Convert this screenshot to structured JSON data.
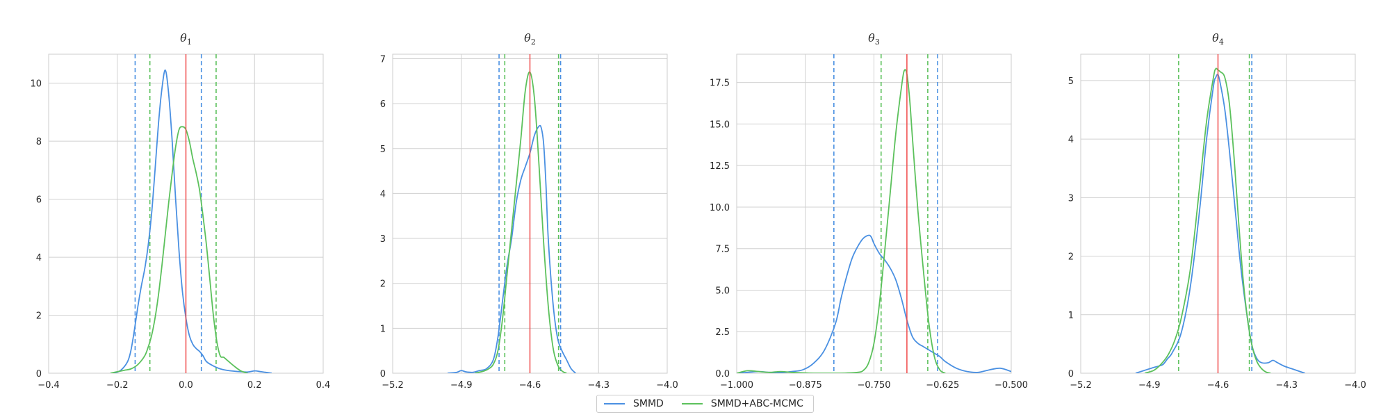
{
  "colors": {
    "smmd": "#4a90e2",
    "abc": "#5cc15c",
    "truth": "#f04a4a",
    "grid": "#d0d0d0",
    "axis_text": "#262626"
  },
  "legend": {
    "placement": "bottom-center",
    "items": [
      {
        "label": "SMMD",
        "color": "#4a90e2"
      },
      {
        "label": "SMMD+ABC-MCMC",
        "color": "#5cc15c"
      }
    ]
  },
  "chart_data": [
    {
      "type": "line",
      "title_base": "θ",
      "title_sub": "1",
      "xlim": [
        -0.4,
        0.4
      ],
      "ylim": [
        0,
        11
      ],
      "xticks": [
        -0.4,
        -0.2,
        0.0,
        0.2,
        0.4
      ],
      "xtick_labels": [
        "−0.4",
        "−0.2",
        "0.0",
        "0.2",
        "0.4"
      ],
      "yticks": [
        0,
        2,
        4,
        6,
        8,
        10
      ],
      "ytick_labels": [
        "0",
        "2",
        "4",
        "6",
        "8",
        "10"
      ],
      "grid": true,
      "true_value": 0.0,
      "series": [
        {
          "name": "SMMD",
          "color": "#4a90e2",
          "x": [
            -0.21,
            -0.19,
            -0.17,
            -0.16,
            -0.15,
            -0.14,
            -0.13,
            -0.12,
            -0.11,
            -0.1,
            -0.09,
            -0.08,
            -0.07,
            -0.06,
            -0.05,
            -0.04,
            -0.03,
            -0.02,
            -0.01,
            0.0,
            0.01,
            0.02,
            0.03,
            0.04,
            0.05,
            0.06,
            0.08,
            0.1,
            0.12,
            0.15,
            0.18,
            0.2,
            0.22,
            0.25
          ],
          "y": [
            0.0,
            0.1,
            0.4,
            0.8,
            1.5,
            2.3,
            3.0,
            3.6,
            4.4,
            5.5,
            7.0,
            8.6,
            9.8,
            10.45,
            9.6,
            8.0,
            6.0,
            4.2,
            2.8,
            1.9,
            1.3,
            1.0,
            0.85,
            0.75,
            0.6,
            0.4,
            0.25,
            0.15,
            0.1,
            0.06,
            0.04,
            0.08,
            0.05,
            0.0
          ]
        },
        {
          "name": "SMMD+ABC-MCMC",
          "color": "#5cc15c",
          "x": [
            -0.22,
            -0.2,
            -0.18,
            -0.16,
            -0.14,
            -0.12,
            -0.11,
            -0.1,
            -0.09,
            -0.08,
            -0.07,
            -0.06,
            -0.05,
            -0.04,
            -0.03,
            -0.02,
            -0.01,
            0.0,
            0.01,
            0.02,
            0.03,
            0.04,
            0.05,
            0.06,
            0.07,
            0.08,
            0.09,
            0.1,
            0.11,
            0.12,
            0.14,
            0.16,
            0.18
          ],
          "y": [
            0.0,
            0.05,
            0.1,
            0.15,
            0.3,
            0.6,
            0.9,
            1.3,
            1.9,
            2.7,
            3.7,
            4.8,
            5.9,
            6.9,
            7.8,
            8.4,
            8.5,
            8.4,
            8.0,
            7.4,
            6.9,
            6.3,
            5.4,
            4.4,
            3.2,
            2.0,
            1.1,
            0.6,
            0.55,
            0.45,
            0.25,
            0.08,
            0.0
          ]
        }
      ],
      "intervals": [
        {
          "series": "SMMD",
          "color": "#4a90e2",
          "values": [
            -0.148,
            0.045
          ]
        },
        {
          "series": "SMMD+ABC-MCMC",
          "color": "#5cc15c",
          "values": [
            -0.105,
            0.088
          ]
        }
      ]
    },
    {
      "type": "line",
      "title_base": "θ",
      "title_sub": "2",
      "xlim": [
        -5.2,
        -4.0
      ],
      "ylim": [
        0,
        7.1
      ],
      "xticks": [
        -5.2,
        -4.9,
        -4.6,
        -4.3,
        -4.0
      ],
      "xtick_labels": [
        "−5.2",
        "−4.9",
        "−4.6",
        "−4.3",
        "−4.0"
      ],
      "yticks": [
        0,
        1,
        2,
        3,
        4,
        5,
        6,
        7
      ],
      "ytick_labels": [
        "0",
        "1",
        "2",
        "3",
        "4",
        "5",
        "6",
        "7"
      ],
      "grid": true,
      "true_value": -4.6,
      "series": [
        {
          "name": "SMMD",
          "color": "#4a90e2",
          "x": [
            -4.96,
            -4.92,
            -4.9,
            -4.88,
            -4.85,
            -4.82,
            -4.79,
            -4.76,
            -4.74,
            -4.72,
            -4.7,
            -4.68,
            -4.66,
            -4.64,
            -4.62,
            -4.6,
            -4.58,
            -4.56,
            -4.55,
            -4.54,
            -4.53,
            -4.52,
            -4.5,
            -4.48,
            -4.46,
            -4.44,
            -4.42,
            -4.4
          ],
          "y": [
            0.0,
            0.02,
            0.06,
            0.03,
            0.02,
            0.06,
            0.1,
            0.3,
            0.8,
            1.6,
            2.4,
            3.0,
            3.8,
            4.3,
            4.6,
            4.9,
            5.3,
            5.5,
            5.45,
            5.1,
            4.2,
            3.0,
            1.6,
            0.8,
            0.5,
            0.3,
            0.1,
            0.0
          ]
        },
        {
          "name": "SMMD+ABC-MCMC",
          "color": "#5cc15c",
          "x": [
            -4.84,
            -4.8,
            -4.78,
            -4.76,
            -4.74,
            -4.72,
            -4.7,
            -4.68,
            -4.66,
            -4.64,
            -4.62,
            -4.6,
            -4.58,
            -4.56,
            -4.54,
            -4.52,
            -4.5,
            -4.48,
            -4.46,
            -4.44
          ],
          "y": [
            0.0,
            0.05,
            0.1,
            0.2,
            0.5,
            1.2,
            2.2,
            3.2,
            4.2,
            5.2,
            6.3,
            6.7,
            6.1,
            4.6,
            2.9,
            1.5,
            0.6,
            0.2,
            0.05,
            0.0
          ]
        }
      ],
      "intervals": [
        {
          "series": "SMMD",
          "color": "#4a90e2",
          "values": [
            -4.735,
            -4.466
          ]
        },
        {
          "series": "SMMD+ABC-MCMC",
          "color": "#5cc15c",
          "values": [
            -4.71,
            -4.475
          ]
        }
      ]
    },
    {
      "type": "line",
      "title_base": "θ",
      "title_sub": "3",
      "xlim": [
        -1.0,
        -0.5
      ],
      "ylim": [
        0,
        19.2
      ],
      "xticks": [
        -1.0,
        -0.875,
        -0.75,
        -0.625,
        -0.5
      ],
      "xtick_labels": [
        "−1.000",
        "−0.875",
        "−0.750",
        "−0.625",
        "−0.500"
      ],
      "yticks": [
        0,
        2.5,
        5,
        7.5,
        10,
        12.5,
        15,
        17.5
      ],
      "ytick_labels": [
        "0.0",
        "2.5",
        "5.0",
        "7.5",
        "10.0",
        "12.5",
        "15.0",
        "17.5"
      ],
      "grid": true,
      "true_value": -0.69,
      "series": [
        {
          "name": "SMMD",
          "color": "#4a90e2",
          "x": [
            -1.0,
            -0.98,
            -0.96,
            -0.94,
            -0.92,
            -0.9,
            -0.88,
            -0.86,
            -0.84,
            -0.82,
            -0.81,
            -0.8,
            -0.79,
            -0.78,
            -0.77,
            -0.76,
            -0.755,
            -0.75,
            -0.74,
            -0.73,
            -0.72,
            -0.71,
            -0.7,
            -0.69,
            -0.68,
            -0.67,
            -0.66,
            -0.65,
            -0.64,
            -0.63,
            -0.62,
            -0.6,
            -0.58,
            -0.56,
            -0.54,
            -0.52,
            -0.5
          ],
          "y": [
            0.0,
            0.05,
            0.1,
            0.05,
            0.03,
            0.1,
            0.2,
            0.6,
            1.4,
            3.0,
            4.5,
            5.8,
            6.9,
            7.6,
            8.1,
            8.3,
            8.2,
            7.8,
            7.2,
            6.8,
            6.3,
            5.6,
            4.5,
            3.2,
            2.2,
            1.8,
            1.6,
            1.4,
            1.2,
            1.0,
            0.7,
            0.3,
            0.1,
            0.05,
            0.2,
            0.3,
            0.1
          ]
        },
        {
          "name": "SMMD+ABC-MCMC",
          "color": "#5cc15c",
          "x": [
            -1.0,
            -0.98,
            -0.96,
            -0.94,
            -0.92,
            -0.9,
            -0.88,
            -0.86,
            -0.84,
            -0.82,
            -0.8,
            -0.78,
            -0.77,
            -0.76,
            -0.75,
            -0.74,
            -0.73,
            -0.72,
            -0.71,
            -0.7,
            -0.695,
            -0.69,
            -0.685,
            -0.68,
            -0.67,
            -0.66,
            -0.65,
            -0.64,
            -0.63,
            -0.62
          ],
          "y": [
            0.0,
            0.15,
            0.1,
            0.05,
            0.1,
            0.05,
            0.02,
            0.0,
            0.0,
            0.0,
            0.01,
            0.05,
            0.15,
            0.6,
            1.8,
            4.2,
            7.5,
            11.0,
            14.5,
            17.2,
            18.2,
            18.0,
            16.5,
            14.2,
            9.8,
            6.2,
            3.0,
            1.0,
            0.2,
            0.0
          ]
        }
      ],
      "intervals": [
        {
          "series": "SMMD",
          "color": "#4a90e2",
          "values": [
            -0.823,
            -0.634
          ]
        },
        {
          "series": "SMMD+ABC-MCMC",
          "color": "#5cc15c",
          "values": [
            -0.737,
            -0.652
          ]
        }
      ]
    },
    {
      "type": "line",
      "title_base": "θ",
      "title_sub": "4",
      "xlim": [
        -5.2,
        -4.0
      ],
      "ylim": [
        0,
        5.45
      ],
      "xticks": [
        -5.2,
        -4.9,
        -4.6,
        -4.3,
        -4.0
      ],
      "xtick_labels": [
        "−5.2",
        "−4.9",
        "−4.6",
        "−4.3",
        "−4.0"
      ],
      "yticks": [
        0,
        1,
        2,
        3,
        4,
        5
      ],
      "ytick_labels": [
        "0",
        "1",
        "2",
        "3",
        "4",
        "5"
      ],
      "grid": true,
      "true_value": -4.6,
      "series": [
        {
          "name": "SMMD",
          "color": "#4a90e2",
          "x": [
            -4.96,
            -4.92,
            -4.88,
            -4.86,
            -4.84,
            -4.82,
            -4.8,
            -4.76,
            -4.72,
            -4.68,
            -4.65,
            -4.62,
            -4.61,
            -4.6,
            -4.59,
            -4.57,
            -4.55,
            -4.52,
            -4.5,
            -4.47,
            -4.45,
            -4.43,
            -4.41,
            -4.38,
            -4.36,
            -4.34,
            -4.31,
            -4.28,
            -4.25,
            -4.22
          ],
          "y": [
            0.0,
            0.05,
            0.1,
            0.12,
            0.15,
            0.25,
            0.35,
            0.7,
            1.5,
            2.8,
            4.0,
            4.9,
            5.05,
            5.1,
            4.95,
            4.5,
            3.8,
            2.6,
            1.8,
            0.9,
            0.45,
            0.25,
            0.18,
            0.18,
            0.22,
            0.18,
            0.12,
            0.08,
            0.04,
            0.0
          ]
        },
        {
          "name": "SMMD+ABC-MCMC",
          "color": "#5cc15c",
          "x": [
            -4.92,
            -4.88,
            -4.85,
            -4.82,
            -4.79,
            -4.76,
            -4.72,
            -4.68,
            -4.65,
            -4.62,
            -4.61,
            -4.6,
            -4.59,
            -4.57,
            -4.55,
            -4.53,
            -4.51,
            -4.49,
            -4.47,
            -4.45,
            -4.43,
            -4.41,
            -4.39,
            -4.37
          ],
          "y": [
            0.0,
            0.05,
            0.15,
            0.3,
            0.55,
            0.95,
            1.8,
            3.2,
            4.3,
            5.05,
            5.2,
            5.18,
            5.15,
            5.05,
            4.6,
            3.7,
            2.6,
            1.6,
            0.9,
            0.45,
            0.2,
            0.08,
            0.02,
            0.0
          ]
        }
      ],
      "intervals": [
        {
          "series": "SMMD",
          "color": "#4a90e2",
          "values": [
            -4.452,
            -4.452
          ]
        },
        {
          "series": "SMMD+ABC-MCMC",
          "color": "#5cc15c",
          "values": [
            -4.772,
            -4.463
          ]
        }
      ]
    }
  ]
}
